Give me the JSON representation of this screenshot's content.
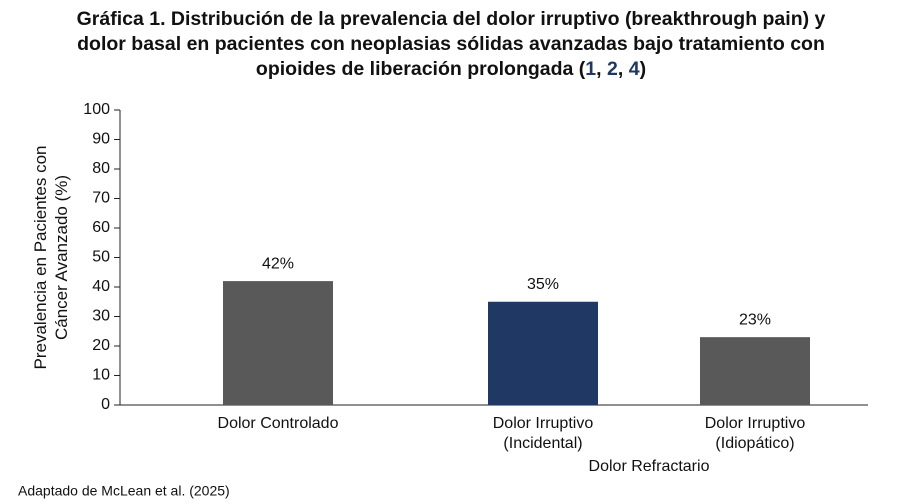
{
  "chart_data": {
    "type": "bar",
    "title_lines": [
      "Gráfica 1. Distribución de la prevalencia del dolor irruptivo (breakthrough pain) y",
      "dolor basal en pacientes con neoplasias sólidas avanzadas bajo tratamiento con"
    ],
    "title_last_parts": [
      {
        "text": "opioides de liberación prolongada ("
      },
      {
        "text": "1",
        "color": "#1f3864"
      },
      {
        "text": ", "
      },
      {
        "text": "2",
        "color": "#1f3864"
      },
      {
        "text": ", "
      },
      {
        "text": "4",
        "color": "#1f3864"
      },
      {
        "text": ")"
      }
    ],
    "y_label_lines": [
      "Prevalencia en Pacientes con",
      "Cáncer Avanzado (%)"
    ],
    "categories": [
      [
        "Dolor Controlado"
      ],
      [
        "Dolor Irruptivo",
        "(Incidental)"
      ],
      [
        "Dolor Irruptivo",
        "(Idiopático)"
      ]
    ],
    "category_group": "Dolor Refractario",
    "values": [
      42,
      35,
      23
    ],
    "value_labels": [
      "42%",
      "35%",
      "23%"
    ],
    "colors": [
      "#595959",
      "#1f3864",
      "#595959"
    ],
    "ylim": [
      0,
      100
    ],
    "yticks": [
      0,
      10,
      20,
      30,
      40,
      50,
      60,
      70,
      80,
      90,
      100
    ],
    "grid": false,
    "source": "Adaptado de McLean et al. (2025)"
  }
}
